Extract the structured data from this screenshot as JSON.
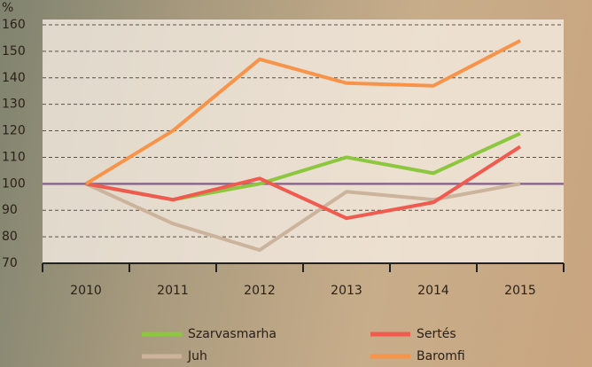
{
  "chart_data": {
    "type": "line",
    "y_unit": "%",
    "categories": [
      "2010",
      "2011",
      "2012",
      "2013",
      "2014",
      "2015"
    ],
    "series": [
      {
        "name": "Szarvasmarha",
        "color": "#8dc63f",
        "values": [
          100,
          94,
          100,
          110,
          104,
          119
        ]
      },
      {
        "name": "Sertés",
        "color": "#f05a4f",
        "values": [
          100,
          94,
          102,
          87,
          93,
          114
        ]
      },
      {
        "name": "Juh",
        "color": "#cbb39c",
        "values": [
          100,
          85,
          75,
          97,
          94,
          100
        ]
      },
      {
        "name": "Baromfi",
        "color": "#f7944a",
        "values": [
          100,
          120,
          147,
          138,
          137,
          154
        ]
      }
    ],
    "reference_line": 100,
    "reference_color": "#8a6a8c",
    "ylim": [
      70,
      160
    ],
    "yticks": [
      70,
      80,
      90,
      100,
      110,
      120,
      130,
      140,
      150,
      160
    ],
    "grid": true
  }
}
